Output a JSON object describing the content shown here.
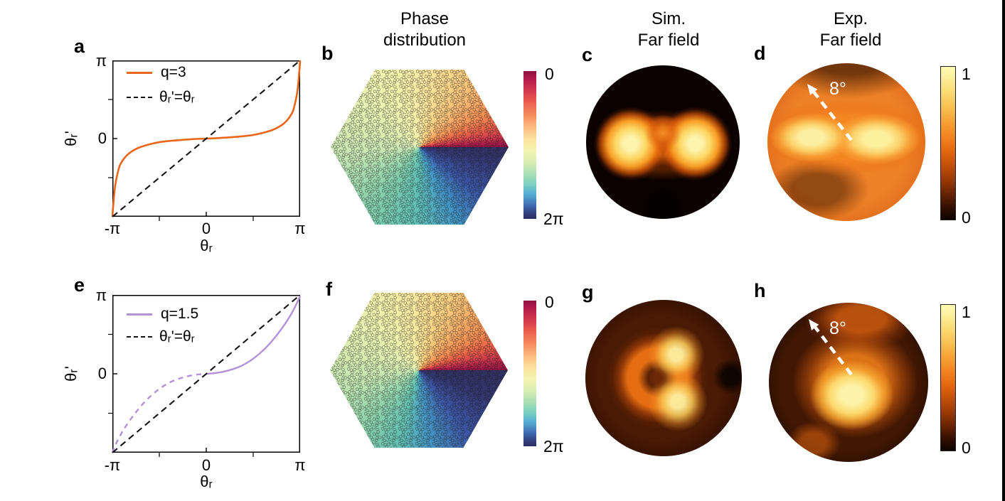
{
  "column_titles": [
    {
      "line1": "Phase",
      "line2": "distribution"
    },
    {
      "line1": "Sim.",
      "line2": "Far field"
    },
    {
      "line1": "Exp.",
      "line2": "Far field"
    }
  ],
  "panels": {
    "a": {
      "letter": "a",
      "xlabel": "θᵣ",
      "ylabel": "θᵣ'",
      "xticks": [
        "-π",
        "0",
        "π"
      ],
      "yticks": [
        "π",
        "0"
      ],
      "legend": [
        {
          "label": "q=3"
        },
        {
          "label": "θᵣ'=θᵣ"
        }
      ]
    },
    "b": {
      "letter": "b",
      "colorbar_top": "0",
      "colorbar_bottom": "2π"
    },
    "c": {
      "letter": "c"
    },
    "d": {
      "letter": "d",
      "annotation": "8°",
      "colorbar_top": "1",
      "colorbar_bottom": "0"
    },
    "e": {
      "letter": "e",
      "xlabel": "θᵣ",
      "ylabel": "θᵣ'",
      "xticks": [
        "-π",
        "0",
        "π"
      ],
      "yticks": [
        "π",
        "0"
      ],
      "legend": [
        {
          "label": "q=1.5"
        },
        {
          "label": "θᵣ'=θᵣ"
        }
      ]
    },
    "f": {
      "letter": "f",
      "colorbar_top": "0",
      "colorbar_bottom": "2π"
    },
    "g": {
      "letter": "g"
    },
    "h": {
      "letter": "h",
      "annotation": "8°",
      "colorbar_top": "1",
      "colorbar_bottom": "0"
    }
  },
  "colors": {
    "q3_orange": "#e8671b",
    "q15_purple": "#b291d8",
    "identity_black": "#151515",
    "arrow_white": "#ffffff"
  },
  "chart_data": [
    {
      "id": "panel-a-line",
      "target": "chart-a",
      "type": "line",
      "title": "",
      "xlabel": "θr",
      "ylabel": "θr'",
      "xlim": [
        -3.1416,
        3.1416
      ],
      "ylim": [
        -3.1416,
        3.1416
      ],
      "grid": false,
      "legend_position": "upper-left",
      "ticks": {
        "xmajor": [
          0
        ],
        "xminor": [
          -1.5708,
          1.5708
        ],
        "ymajor": [
          0
        ],
        "yminor": [
          -1.5708,
          1.5708
        ]
      },
      "series": [
        {
          "name": "q=3",
          "color": "#e8671b",
          "width": 2.6,
          "dash": null,
          "x": [
            -3.1416,
            -3.12,
            -3.09,
            -3.05,
            -3.0,
            -2.9,
            -2.75,
            -2.6,
            -2.4,
            -2.2,
            -1.9,
            -1.6,
            -1.2,
            -0.8,
            -0.4,
            0,
            0.4,
            0.8,
            1.2,
            1.6,
            1.9,
            2.2,
            2.4,
            2.6,
            2.75,
            2.9,
            3.0,
            3.05,
            3.09,
            3.12,
            3.1416
          ],
          "y": [
            -3.1416,
            -2.8,
            -2.35,
            -1.93,
            -1.58,
            -1.1,
            -0.8,
            -0.61,
            -0.45,
            -0.34,
            -0.23,
            -0.15,
            -0.09,
            -0.05,
            -0.02,
            0,
            0.02,
            0.05,
            0.09,
            0.15,
            0.23,
            0.34,
            0.45,
            0.61,
            0.8,
            1.1,
            1.58,
            1.93,
            2.35,
            2.8,
            3.1416
          ]
        },
        {
          "name": "θr'=θr",
          "color": "#151515",
          "width": 2.1,
          "dash": [
            9,
            6
          ],
          "x": [
            -3.1416,
            3.1416
          ],
          "y": [
            -3.1416,
            3.1416
          ]
        }
      ]
    },
    {
      "id": "panel-e-line",
      "target": "chart-e",
      "type": "line",
      "title": "",
      "xlabel": "θr",
      "ylabel": "θr'",
      "xlim": [
        -3.1416,
        3.1416
      ],
      "ylim": [
        -3.1416,
        3.1416
      ],
      "grid": false,
      "legend_position": "upper-left",
      "ticks": {
        "xmajor": [
          0
        ],
        "xminor": [
          -1.5708,
          1.5708
        ],
        "ymajor": [
          0
        ],
        "yminor": [
          -1.5708,
          1.5708
        ]
      },
      "series": [
        {
          "name": "q=1.5 (solid branch θr>0)",
          "color": "#b291d8",
          "width": 2.4,
          "dash": null,
          "x": [
            0,
            0.3,
            0.6,
            0.9,
            1.2,
            1.5,
            1.8,
            2.1,
            2.4,
            2.7,
            2.9,
            3.05,
            3.1416
          ],
          "y": [
            0,
            0.03,
            0.09,
            0.19,
            0.33,
            0.54,
            0.82,
            1.17,
            1.6,
            2.1,
            2.5,
            2.86,
            3.1
          ]
        },
        {
          "name": "q=1.5 (dashed branch θr<0)",
          "color": "#b291d8",
          "width": 2.4,
          "dash": [
            7,
            6
          ],
          "x": [
            -3.1416,
            -3.05,
            -2.9,
            -2.7,
            -2.4,
            -2.1,
            -1.8,
            -1.5,
            -1.2,
            -0.9,
            -0.6,
            -0.3,
            0
          ],
          "y": [
            -3.1416,
            -2.86,
            -2.5,
            -2.1,
            -1.6,
            -1.17,
            -0.82,
            -0.54,
            -0.33,
            -0.19,
            -0.09,
            -0.03,
            0
          ]
        },
        {
          "name": "θr'=θr",
          "color": "#151515",
          "width": 2.1,
          "dash": [
            9,
            6
          ],
          "x": [
            -3.1416,
            3.1416
          ],
          "y": [
            -3.1416,
            3.1416
          ]
        }
      ]
    },
    {
      "id": "phase-map-b",
      "type": "heatmap",
      "shape": "hexagon",
      "quantity": "phase",
      "range_labels": [
        "0",
        "2π"
      ],
      "colormap": "spectral-like (0=crimson → 2π=navy)",
      "description": "azimuthal phase winding 0→2π counterclockwise from +x axis, seam along right horizontal; overlaid lattice of meta-atom circle clusters, q=3 device"
    },
    {
      "id": "phase-map-f",
      "type": "heatmap",
      "shape": "hexagon",
      "quantity": "phase",
      "range_labels": [
        "0",
        "2π"
      ],
      "colormap": "spectral-like (0=crimson → 2π=navy)",
      "description": "azimuthal phase winding 0→2π counterclockwise from +x axis, seam along right horizontal; overlaid lattice of meta-atom circle clusters, q=1.5 device"
    },
    {
      "id": "farfield-c",
      "type": "heatmap",
      "shape": "disk",
      "colormap": "hot",
      "value_range": [
        0,
        1
      ],
      "description": "Simulated far field (q=3): two bright lobes left and right of center joined by a horizontal orange band, dark top and dark notch at bottom center"
    },
    {
      "id": "farfield-d",
      "type": "heatmap",
      "shape": "disk",
      "colormap": "hot",
      "value_range": [
        0,
        1
      ],
      "annotation": "8° dashed white arrow toward upper-left",
      "description": "Experimental far field (q=3): overall orange disk with two pale-yellow lobes left/right of center, darker band at top and lower-left"
    },
    {
      "id": "farfield-g",
      "type": "heatmap",
      "shape": "disk",
      "colormap": "hot",
      "value_range": [
        0,
        1
      ],
      "description": "Simulated far field (q=1.5): orange donut ring with dark central hole slightly left of center, brightest yellow spots on upper-right and lower-right of ring"
    },
    {
      "id": "farfield-h",
      "type": "heatmap",
      "shape": "disk",
      "colormap": "hot",
      "value_range": [
        0,
        1
      ],
      "annotation": "8° dashed white arrow toward upper-left",
      "description": "Experimental far field (q=1.5): single bright pale-yellow blob just right/below center surrounded by orange, dark left/right edges and bottom"
    }
  ]
}
